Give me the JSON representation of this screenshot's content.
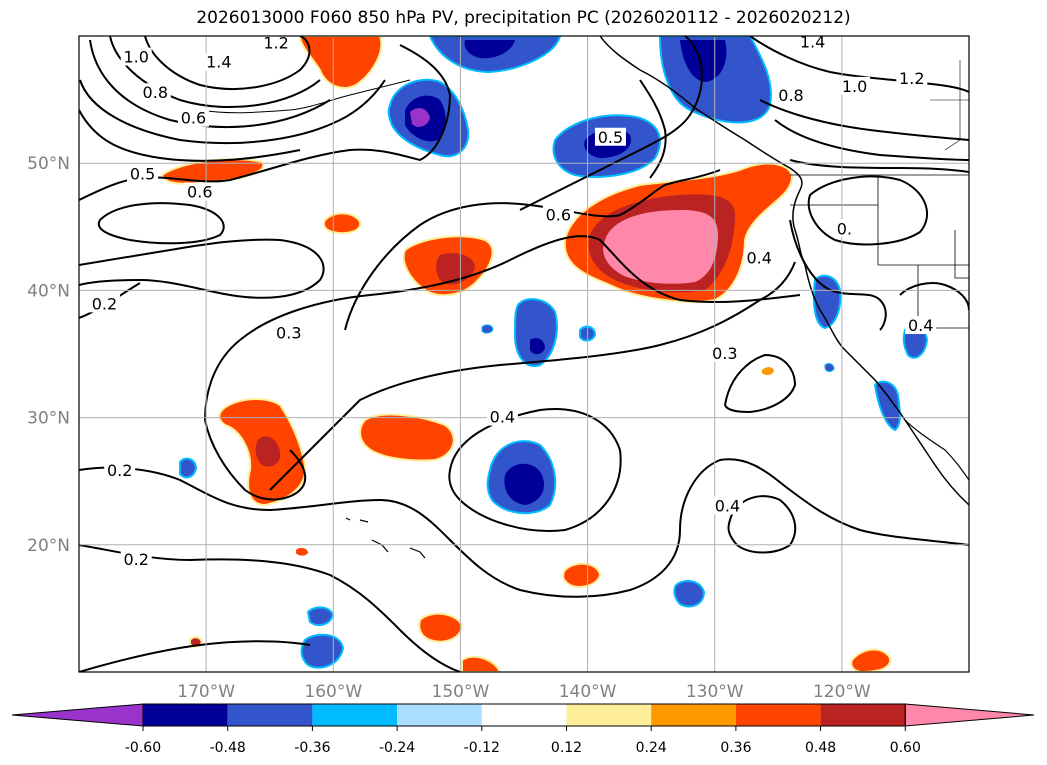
{
  "title": "2026013000 F060 850 hPa PV, precipitation PC (2026020112 - 2026020212)",
  "map": {
    "lon_range": [
      -180,
      -110
    ],
    "lat_range": [
      10,
      60
    ],
    "lon_ticks": [
      {
        "value": -170,
        "label": "170°W"
      },
      {
        "value": -160,
        "label": "160°W"
      },
      {
        "value": -150,
        "label": "150°W"
      },
      {
        "value": -140,
        "label": "140°W"
      },
      {
        "value": -130,
        "label": "130°W"
      },
      {
        "value": -120,
        "label": "120°W"
      }
    ],
    "lat_ticks": [
      {
        "value": 20,
        "label": "20°N"
      },
      {
        "value": 30,
        "label": "30°N"
      },
      {
        "value": 40,
        "label": "40°N"
      },
      {
        "value": 50,
        "label": "50°N"
      }
    ],
    "grid": true
  },
  "contour_labels": [
    {
      "text": "1.0",
      "lon": -175.5,
      "lat": 58.3
    },
    {
      "text": "1.4",
      "lon": -169.0,
      "lat": 57.9
    },
    {
      "text": "1.2",
      "lon": -164.5,
      "lat": 59.4
    },
    {
      "text": "0.8",
      "lon": -174.0,
      "lat": 55.5
    },
    {
      "text": "0.6",
      "lon": -171.0,
      "lat": 53.5
    },
    {
      "text": "0.5",
      "lon": -175.0,
      "lat": 49.1
    },
    {
      "text": "0.6",
      "lon": -170.5,
      "lat": 47.7
    },
    {
      "text": "0.2",
      "lon": -178.0,
      "lat": 38.9
    },
    {
      "text": "0.3",
      "lon": -163.5,
      "lat": 36.6
    },
    {
      "text": "0.2",
      "lon": -176.8,
      "lat": 25.8
    },
    {
      "text": "0.2",
      "lon": -175.5,
      "lat": 18.8
    },
    {
      "text": "0.6",
      "lon": -142.3,
      "lat": 45.9
    },
    {
      "text": "0.5",
      "lon": -138.2,
      "lat": 52.0
    },
    {
      "text": "0.4",
      "lon": -146.7,
      "lat": 30.0
    },
    {
      "text": "0.3",
      "lon": -129.2,
      "lat": 35.0
    },
    {
      "text": "0.4",
      "lon": -129.0,
      "lat": 23.0
    },
    {
      "text": "0.4",
      "lon": -126.5,
      "lat": 42.5
    },
    {
      "text": "1.0",
      "lon": -119.0,
      "lat": 56.0
    },
    {
      "text": "1.2",
      "lon": -114.5,
      "lat": 56.6
    },
    {
      "text": "0.8",
      "lon": -124.0,
      "lat": 55.3
    },
    {
      "text": "1.4",
      "lon": -122.3,
      "lat": 59.5
    },
    {
      "text": "0.",
      "lon": -119.8,
      "lat": 44.8
    },
    {
      "text": "0.4",
      "lon": -113.8,
      "lat": 37.2
    }
  ],
  "colorbar": {
    "ticks": [
      "-0.60",
      "-0.48",
      "-0.36",
      "-0.24",
      "-0.12",
      "0.12",
      "0.24",
      "0.36",
      "0.48",
      "0.60"
    ],
    "colors": [
      "#9933cc",
      "#000099",
      "#3355cc",
      "#00bbff",
      "#aaddff",
      "#ffffff",
      "#ffee99",
      "#ff9900",
      "#ff4400",
      "#bb2222",
      "#ff88aa"
    ]
  }
}
